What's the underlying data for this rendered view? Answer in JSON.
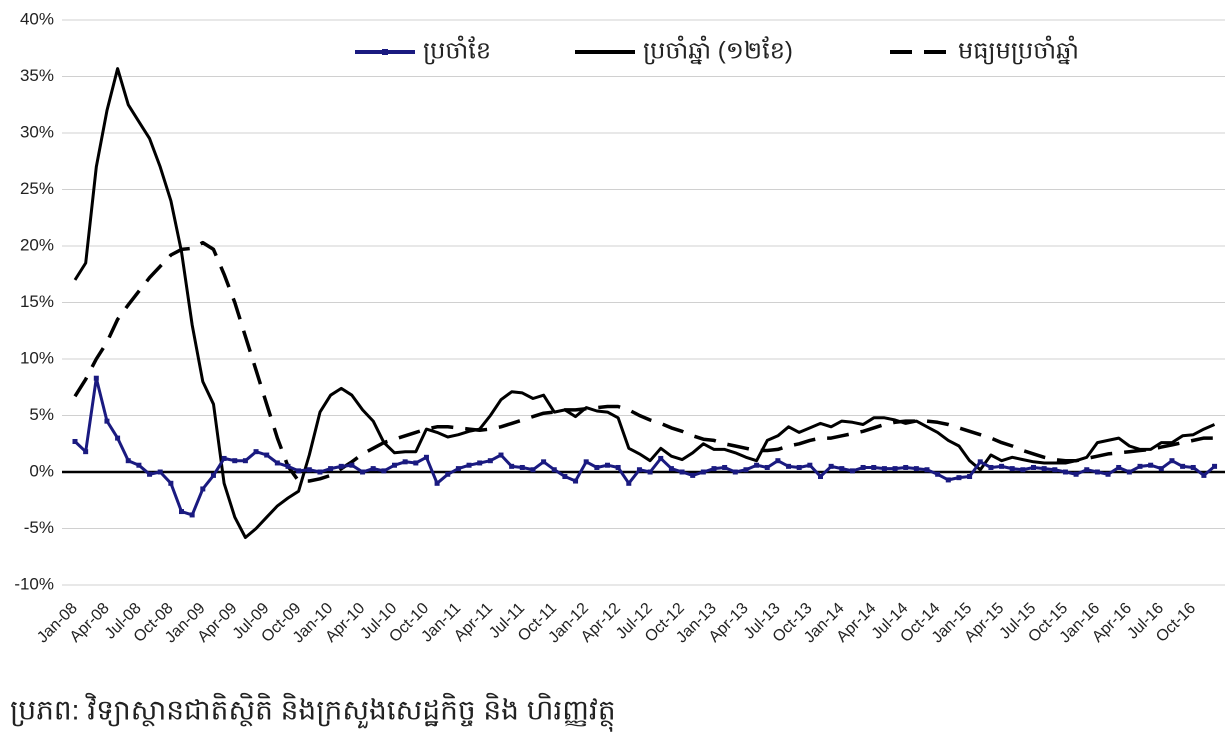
{
  "chart_data": {
    "type": "line",
    "categories": [
      "Jan-08",
      null,
      null,
      "Apr-08",
      null,
      null,
      "Jul-08",
      null,
      null,
      "Oct-08",
      null,
      null,
      "Jan-09",
      null,
      null,
      "Apr-09",
      null,
      null,
      "Jul-09",
      null,
      null,
      "Oct-09",
      null,
      null,
      "Jan-10",
      null,
      null,
      "Apr-10",
      null,
      null,
      "Jul-10",
      null,
      null,
      "Oct-10",
      null,
      null,
      "Jan-11",
      null,
      null,
      "Apr-11",
      null,
      null,
      "Jul-11",
      null,
      null,
      "Oct-11",
      null,
      null,
      "Jan-12",
      null,
      null,
      "Apr-12",
      null,
      null,
      "Jul-12",
      null,
      null,
      "Oct-12",
      null,
      null,
      "Jan-13",
      null,
      null,
      "Apr-13",
      null,
      null,
      "Jul-13",
      null,
      null,
      "Oct-13",
      null,
      null,
      "Jan-14",
      null,
      null,
      "Apr-14",
      null,
      null,
      "Jul-14",
      null,
      null,
      "Oct-14",
      null,
      null,
      "Jan-15",
      null,
      null,
      "Apr-15",
      null,
      null,
      "Jul-15",
      null,
      null,
      "Oct-15",
      null,
      null,
      "Jan-16",
      null,
      null,
      "Apr-16",
      null,
      null,
      "Jul-16",
      null,
      null,
      "Oct-16",
      null,
      null
    ],
    "series": [
      {
        "name": "ប្រចាំខែ",
        "color": "#1a1a80",
        "marker": "square",
        "dashed": false,
        "values": [
          2.7,
          1.8,
          8.3,
          4.5,
          3.0,
          1.0,
          0.6,
          -0.2,
          0.0,
          -1.0,
          -3.5,
          -3.8,
          -1.5,
          -0.3,
          1.2,
          1.0,
          1.0,
          1.8,
          1.5,
          0.8,
          0.5,
          0.1,
          0.2,
          0.0,
          0.3,
          0.5,
          0.6,
          0.0,
          0.3,
          0.1,
          0.6,
          0.9,
          0.8,
          1.3,
          -1.0,
          -0.2,
          0.3,
          0.6,
          0.8,
          1.0,
          1.5,
          0.5,
          0.4,
          0.2,
          0.9,
          0.2,
          -0.4,
          -0.8,
          0.9,
          0.4,
          0.6,
          0.4,
          -1.0,
          0.2,
          0.0,
          1.2,
          0.3,
          0.0,
          -0.3,
          0.0,
          0.3,
          0.4,
          0.0,
          0.2,
          0.6,
          0.4,
          1.0,
          0.5,
          0.4,
          0.6,
          -0.4,
          0.5,
          0.3,
          0.1,
          0.4,
          0.4,
          0.3,
          0.3,
          0.4,
          0.3,
          0.2,
          -0.2,
          -0.7,
          -0.5,
          -0.4,
          0.9,
          0.4,
          0.5,
          0.3,
          0.2,
          0.4,
          0.3,
          0.2,
          0.0,
          -0.2,
          0.2,
          0.0,
          -0.2,
          0.4,
          0.0,
          0.5,
          0.6,
          0.3,
          1.0,
          0.5,
          0.4,
          -0.3,
          0.5
        ]
      },
      {
        "name": "ប្រចាំឆ្នាំ (១២ខែ)",
        "color": "#000000",
        "marker": null,
        "dashed": false,
        "values": [
          17,
          18.5,
          27,
          32,
          35.7,
          32.5,
          31,
          29.5,
          27,
          24,
          19.5,
          13,
          8,
          6,
          -1,
          -4,
          -5.8,
          -5,
          -4,
          -3,
          -2.3,
          -1.7,
          1.5,
          5.3,
          6.8,
          7.4,
          6.8,
          5.5,
          4.5,
          2.6,
          1.7,
          1.8,
          1.8,
          3.8,
          3.5,
          3.1,
          3.3,
          3.6,
          3.8,
          5.0,
          6.4,
          7.1,
          7.0,
          6.5,
          6.8,
          5.3,
          5.5,
          4.9,
          5.7,
          5.4,
          5.3,
          4.8,
          2.1,
          1.6,
          1.0,
          2.1,
          1.4,
          1.1,
          1.7,
          2.5,
          2.0,
          2.0,
          1.7,
          1.3,
          1.0,
          2.8,
          3.2,
          4.0,
          3.5,
          3.9,
          4.3,
          4.0,
          4.5,
          4.4,
          4.2,
          4.8,
          4.8,
          4.6,
          4.3,
          4.5,
          4.0,
          3.5,
          2.8,
          2.3,
          1.0,
          0.2,
          1.5,
          1.0,
          1.3,
          1.1,
          0.9,
          0.8,
          0.8,
          0.8,
          1.0,
          1.3,
          2.6,
          2.8,
          3.0,
          2.3,
          2.0,
          2.0,
          2.6,
          2.6,
          3.2,
          3.3,
          3.8,
          4.2
        ]
      },
      {
        "name": "មធ្យមប្រចាំឆ្នាំ",
        "color": "#000000",
        "marker": null,
        "dashed": true,
        "values": [
          6.7,
          8.2,
          10,
          11.5,
          13.5,
          14.8,
          16,
          17.2,
          18.2,
          19.2,
          19.7,
          19.8,
          20.3,
          19.7,
          17.5,
          15,
          12,
          9,
          6,
          3,
          0.5,
          -0.8,
          -0.8,
          -0.6,
          -0.3,
          0.3,
          0.9,
          1.6,
          2.1,
          2.6,
          2.9,
          3.2,
          3.5,
          3.8,
          4.0,
          4.0,
          3.9,
          3.8,
          3.7,
          3.8,
          4.0,
          4.3,
          4.6,
          4.9,
          5.2,
          5.3,
          5.5,
          5.5,
          5.6,
          5.7,
          5.8,
          5.8,
          5.5,
          5.0,
          4.6,
          4.3,
          3.9,
          3.6,
          3.2,
          2.9,
          2.8,
          2.5,
          2.3,
          2.1,
          1.9,
          1.9,
          2.0,
          2.3,
          2.5,
          2.8,
          3.0,
          3.0,
          3.2,
          3.4,
          3.6,
          3.9,
          4.2,
          4.4,
          4.5,
          4.5,
          4.5,
          4.4,
          4.2,
          3.9,
          3.6,
          3.3,
          3.0,
          2.6,
          2.3,
          1.9,
          1.6,
          1.3,
          1.1,
          1.0,
          1.0,
          1.2,
          1.4,
          1.6,
          1.7,
          1.8,
          1.9,
          2.0,
          2.2,
          2.4,
          2.6,
          2.8,
          3.0,
          3.0
        ]
      }
    ],
    "ylim": [
      -10,
      40
    ],
    "yticks": [
      {
        "value": -10,
        "label": "-10%"
      },
      {
        "value": -5,
        "label": "-5%"
      },
      {
        "value": 0,
        "label": "0%"
      },
      {
        "value": 5,
        "label": "5%"
      },
      {
        "value": 10,
        "label": "10%"
      },
      {
        "value": 15,
        "label": "15%"
      },
      {
        "value": 20,
        "label": "20%"
      },
      {
        "value": 25,
        "label": "25%"
      },
      {
        "value": 30,
        "label": "30%"
      },
      {
        "value": 35,
        "label": "35%"
      },
      {
        "value": 40,
        "label": "40%"
      }
    ],
    "grid": true,
    "legend": "top",
    "source": "ប្រភព: វិទ្យាស្ថានជាតិស្ថិតិ និងក្រសួងសេដ្ឋកិច្ច និង ហិរញ្ញវត្ថុ"
  }
}
